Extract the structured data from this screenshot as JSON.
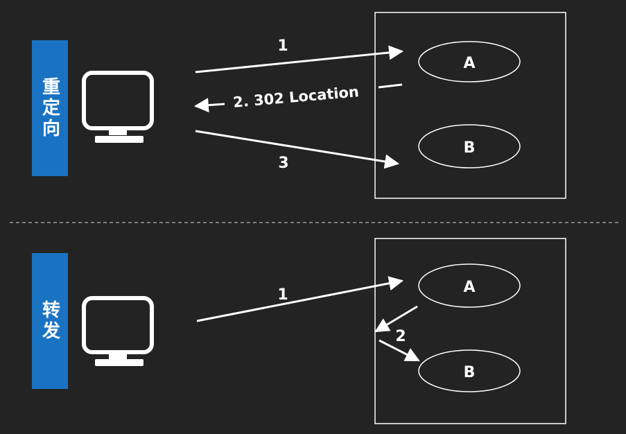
{
  "top": {
    "label": "重定向",
    "node_a": "A",
    "node_b": "B",
    "arrow1_label": "1",
    "arrow2_label": "2. 302 Location",
    "arrow3_label": "3"
  },
  "bottom": {
    "label": "转发",
    "node_a": "A",
    "node_b": "B",
    "arrow1_label": "1",
    "arrow2_label": "2"
  },
  "colors": {
    "background": "#232323",
    "label_box": "#1a73c2",
    "line": "#ffffff"
  }
}
